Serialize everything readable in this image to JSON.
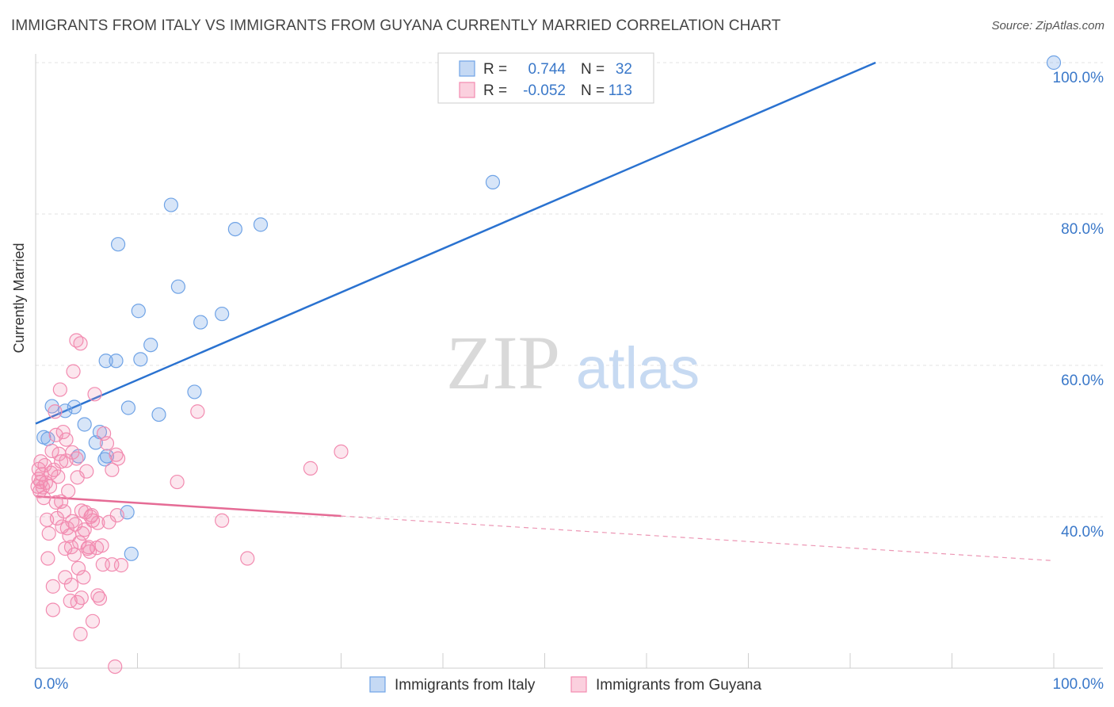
{
  "header": {
    "title": "IMMIGRANTS FROM ITALY VS IMMIGRANTS FROM GUYANA CURRENTLY MARRIED CORRELATION CHART",
    "source": "Source: ZipAtlas.com"
  },
  "watermark": {
    "zip": "ZIP",
    "atlas": "atlas"
  },
  "colors": {
    "italy": "#6fa3e6",
    "italy_line": "#2a72d0",
    "guyana": "#f28bb0",
    "guyana_line": "#e56b95",
    "axis_label": "#3a78c9"
  },
  "legend_top": {
    "rows": [
      {
        "r_label": "R =",
        "r_value": "0.744",
        "n_label": "N =",
        "n_value": "32"
      },
      {
        "r_label": "R =",
        "r_value": "-0.052",
        "n_label": "N =",
        "n_value": "113"
      }
    ]
  },
  "chart_data": {
    "type": "scatter",
    "xlabel": "",
    "ylabel": "Currently Married",
    "xlim": [
      0,
      100
    ],
    "ylim": [
      20,
      100
    ],
    "x_tick_labels": [
      "0.0%",
      "100.0%"
    ],
    "y_ticks": [
      40,
      60,
      80,
      100
    ],
    "y_tick_labels": [
      "40.0%",
      "60.0%",
      "80.0%",
      "100.0%"
    ],
    "grid": true,
    "legend_position": "bottom-center",
    "series": [
      {
        "name": "Immigrants from Italy",
        "trend": {
          "x": [
            0,
            82.5
          ],
          "y": [
            52.3,
            100
          ]
        },
        "points": [
          [
            0.8,
            50.5
          ],
          [
            1.2,
            50.3
          ],
          [
            1.6,
            54.6
          ],
          [
            2.9,
            54.0
          ],
          [
            3.8,
            54.5
          ],
          [
            4.2,
            48.0
          ],
          [
            4.8,
            52.2
          ],
          [
            5.9,
            49.8
          ],
          [
            6.3,
            51.2
          ],
          [
            6.8,
            47.6
          ],
          [
            7.0,
            48.0
          ],
          [
            6.9,
            60.6
          ],
          [
            7.9,
            60.6
          ],
          [
            8.1,
            76.0
          ],
          [
            9.0,
            40.6
          ],
          [
            9.1,
            54.4
          ],
          [
            9.4,
            35.1
          ],
          [
            10.1,
            67.2
          ],
          [
            10.3,
            60.8
          ],
          [
            11.3,
            62.7
          ],
          [
            12.1,
            53.5
          ],
          [
            13.3,
            81.2
          ],
          [
            14.0,
            70.4
          ],
          [
            15.6,
            56.5
          ],
          [
            16.2,
            65.7
          ],
          [
            18.3,
            66.8
          ],
          [
            19.6,
            78.0
          ],
          [
            22.1,
            78.6
          ],
          [
            44.9,
            84.2
          ],
          [
            100.0,
            100.0
          ]
        ]
      },
      {
        "name": "Immigrants from Guyana",
        "trend": {
          "x": [
            0,
            30
          ],
          "y": [
            42.7,
            40.1
          ]
        },
        "trend_dashed": {
          "x": [
            30,
            100
          ],
          "y": [
            40.1,
            34.2
          ]
        },
        "points": [
          [
            0.2,
            44.0
          ],
          [
            0.3,
            45.0
          ],
          [
            0.3,
            46.3
          ],
          [
            0.4,
            43.4
          ],
          [
            0.5,
            47.3
          ],
          [
            0.5,
            44.6
          ],
          [
            0.6,
            45.6
          ],
          [
            0.7,
            43.9
          ],
          [
            0.8,
            42.5
          ],
          [
            0.9,
            46.8
          ],
          [
            1.0,
            44.5
          ],
          [
            1.1,
            39.6
          ],
          [
            1.2,
            34.5
          ],
          [
            1.3,
            37.8
          ],
          [
            1.4,
            44.0
          ],
          [
            1.5,
            45.8
          ],
          [
            1.6,
            48.7
          ],
          [
            1.7,
            27.7
          ],
          [
            1.7,
            30.8
          ],
          [
            1.8,
            46.2
          ],
          [
            1.9,
            53.9
          ],
          [
            2.0,
            41.9
          ],
          [
            2.0,
            50.8
          ],
          [
            2.1,
            39.8
          ],
          [
            2.2,
            45.3
          ],
          [
            2.3,
            48.3
          ],
          [
            2.4,
            56.8
          ],
          [
            2.5,
            47.3
          ],
          [
            2.5,
            42.0
          ],
          [
            2.6,
            38.7
          ],
          [
            2.7,
            51.2
          ],
          [
            2.8,
            40.7
          ],
          [
            2.9,
            35.8
          ],
          [
            2.9,
            32.0
          ],
          [
            3.0,
            50.2
          ],
          [
            3.0,
            47.4
          ],
          [
            3.1,
            38.5
          ],
          [
            3.2,
            43.4
          ],
          [
            3.3,
            37.5
          ],
          [
            3.4,
            28.9
          ],
          [
            3.5,
            31.0
          ],
          [
            3.5,
            36.0
          ],
          [
            3.6,
            39.4
          ],
          [
            3.6,
            48.5
          ],
          [
            3.7,
            59.2
          ],
          [
            3.8,
            35.0
          ],
          [
            3.9,
            39.0
          ],
          [
            4.0,
            63.3
          ],
          [
            4.0,
            47.7
          ],
          [
            4.1,
            28.7
          ],
          [
            4.1,
            45.2
          ],
          [
            4.2,
            33.2
          ],
          [
            4.3,
            36.6
          ],
          [
            4.4,
            24.5
          ],
          [
            4.4,
            62.9
          ],
          [
            4.5,
            40.8
          ],
          [
            4.5,
            29.3
          ],
          [
            4.6,
            37.8
          ],
          [
            4.7,
            32.0
          ],
          [
            4.8,
            38.3
          ],
          [
            4.9,
            40.6
          ],
          [
            5.0,
            46.0
          ],
          [
            5.1,
            35.8
          ],
          [
            5.2,
            36.0
          ],
          [
            5.3,
            35.4
          ],
          [
            5.4,
            40.0
          ],
          [
            5.5,
            40.2
          ],
          [
            5.6,
            39.5
          ],
          [
            5.6,
            26.2
          ],
          [
            5.8,
            56.2
          ],
          [
            6.0,
            35.9
          ],
          [
            6.1,
            39.2
          ],
          [
            6.1,
            29.6
          ],
          [
            6.3,
            29.2
          ],
          [
            6.5,
            36.2
          ],
          [
            6.6,
            33.7
          ],
          [
            6.7,
            51.0
          ],
          [
            7.0,
            49.7
          ],
          [
            7.2,
            39.3
          ],
          [
            7.5,
            46.2
          ],
          [
            7.5,
            33.7
          ],
          [
            7.8,
            20.2
          ],
          [
            7.9,
            48.2
          ],
          [
            8.0,
            40.2
          ],
          [
            8.1,
            47.7
          ],
          [
            8.4,
            33.6
          ],
          [
            13.9,
            44.6
          ],
          [
            15.9,
            53.9
          ],
          [
            18.3,
            39.5
          ],
          [
            20.8,
            34.5
          ],
          [
            27.0,
            46.4
          ],
          [
            30.0,
            48.6
          ]
        ]
      }
    ]
  },
  "legend_bottom": [
    {
      "label": "Immigrants from Italy"
    },
    {
      "label": "Immigrants from Guyana"
    }
  ]
}
